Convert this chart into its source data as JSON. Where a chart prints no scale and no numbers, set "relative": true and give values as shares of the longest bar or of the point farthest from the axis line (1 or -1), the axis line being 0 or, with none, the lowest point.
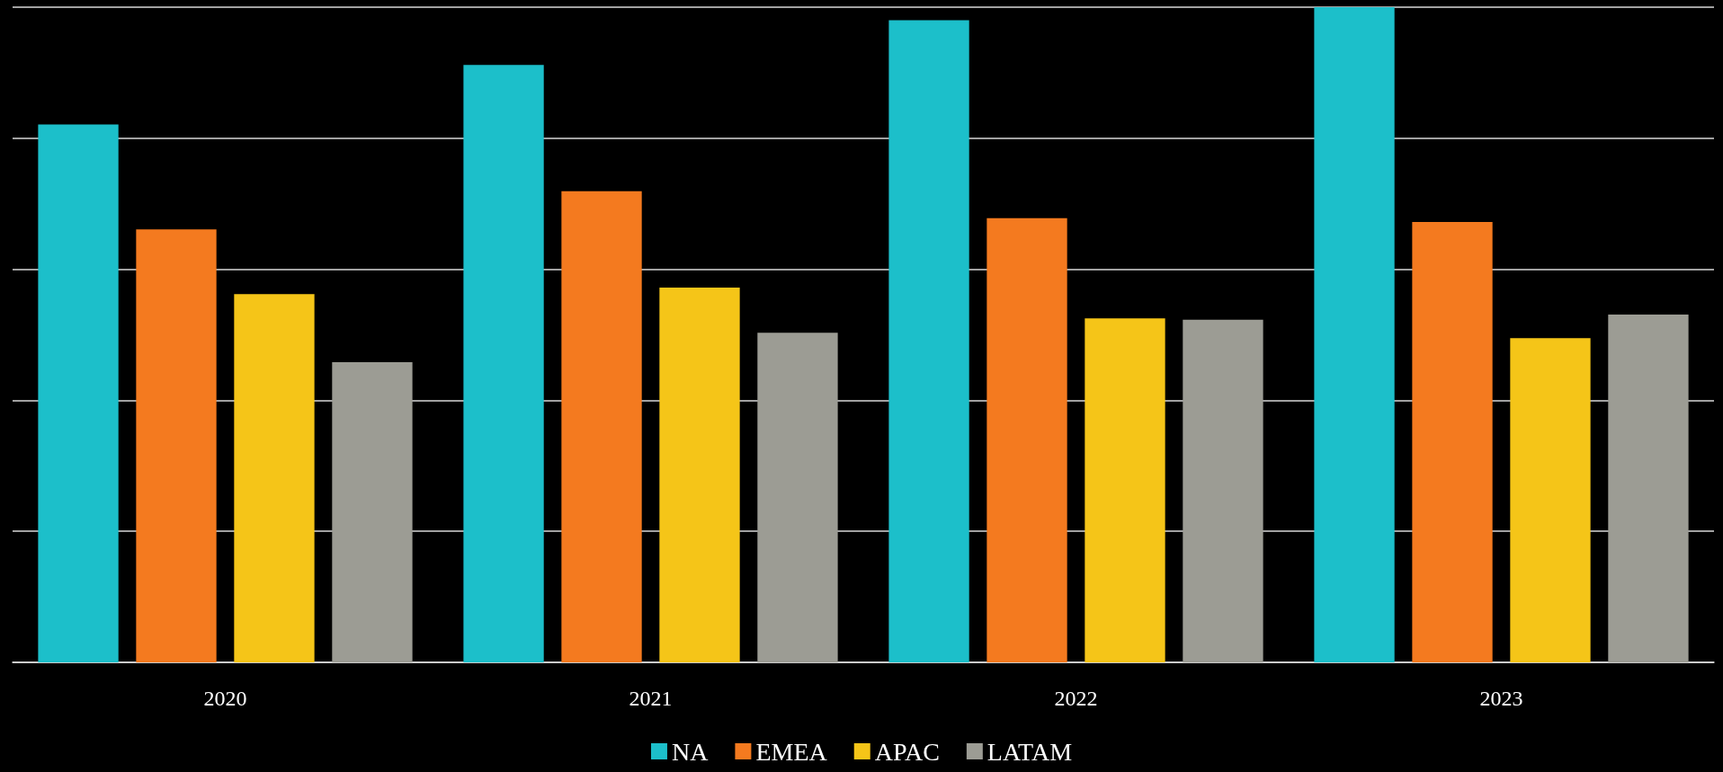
{
  "chart_data": {
    "type": "bar",
    "relative": true,
    "categories": [
      "2020",
      "2021",
      "2022",
      "2023"
    ],
    "series": [
      {
        "name": "NA",
        "color": "#1cbfca",
        "values": [
          0.821,
          0.912,
          0.98,
          1
        ]
      },
      {
        "name": "EMEA",
        "color": "#f47a1f",
        "values": [
          0.661,
          0.719,
          0.678,
          0.672
        ]
      },
      {
        "name": "APAC",
        "color": "#f5c518",
        "values": [
          0.562,
          0.572,
          0.525,
          0.495
        ]
      },
      {
        "name": "LATAM",
        "color": "#9c9c94",
        "values": [
          0.458,
          0.503,
          0.523,
          0.531
        ]
      }
    ],
    "grid": "y",
    "legend": "bottom"
  }
}
